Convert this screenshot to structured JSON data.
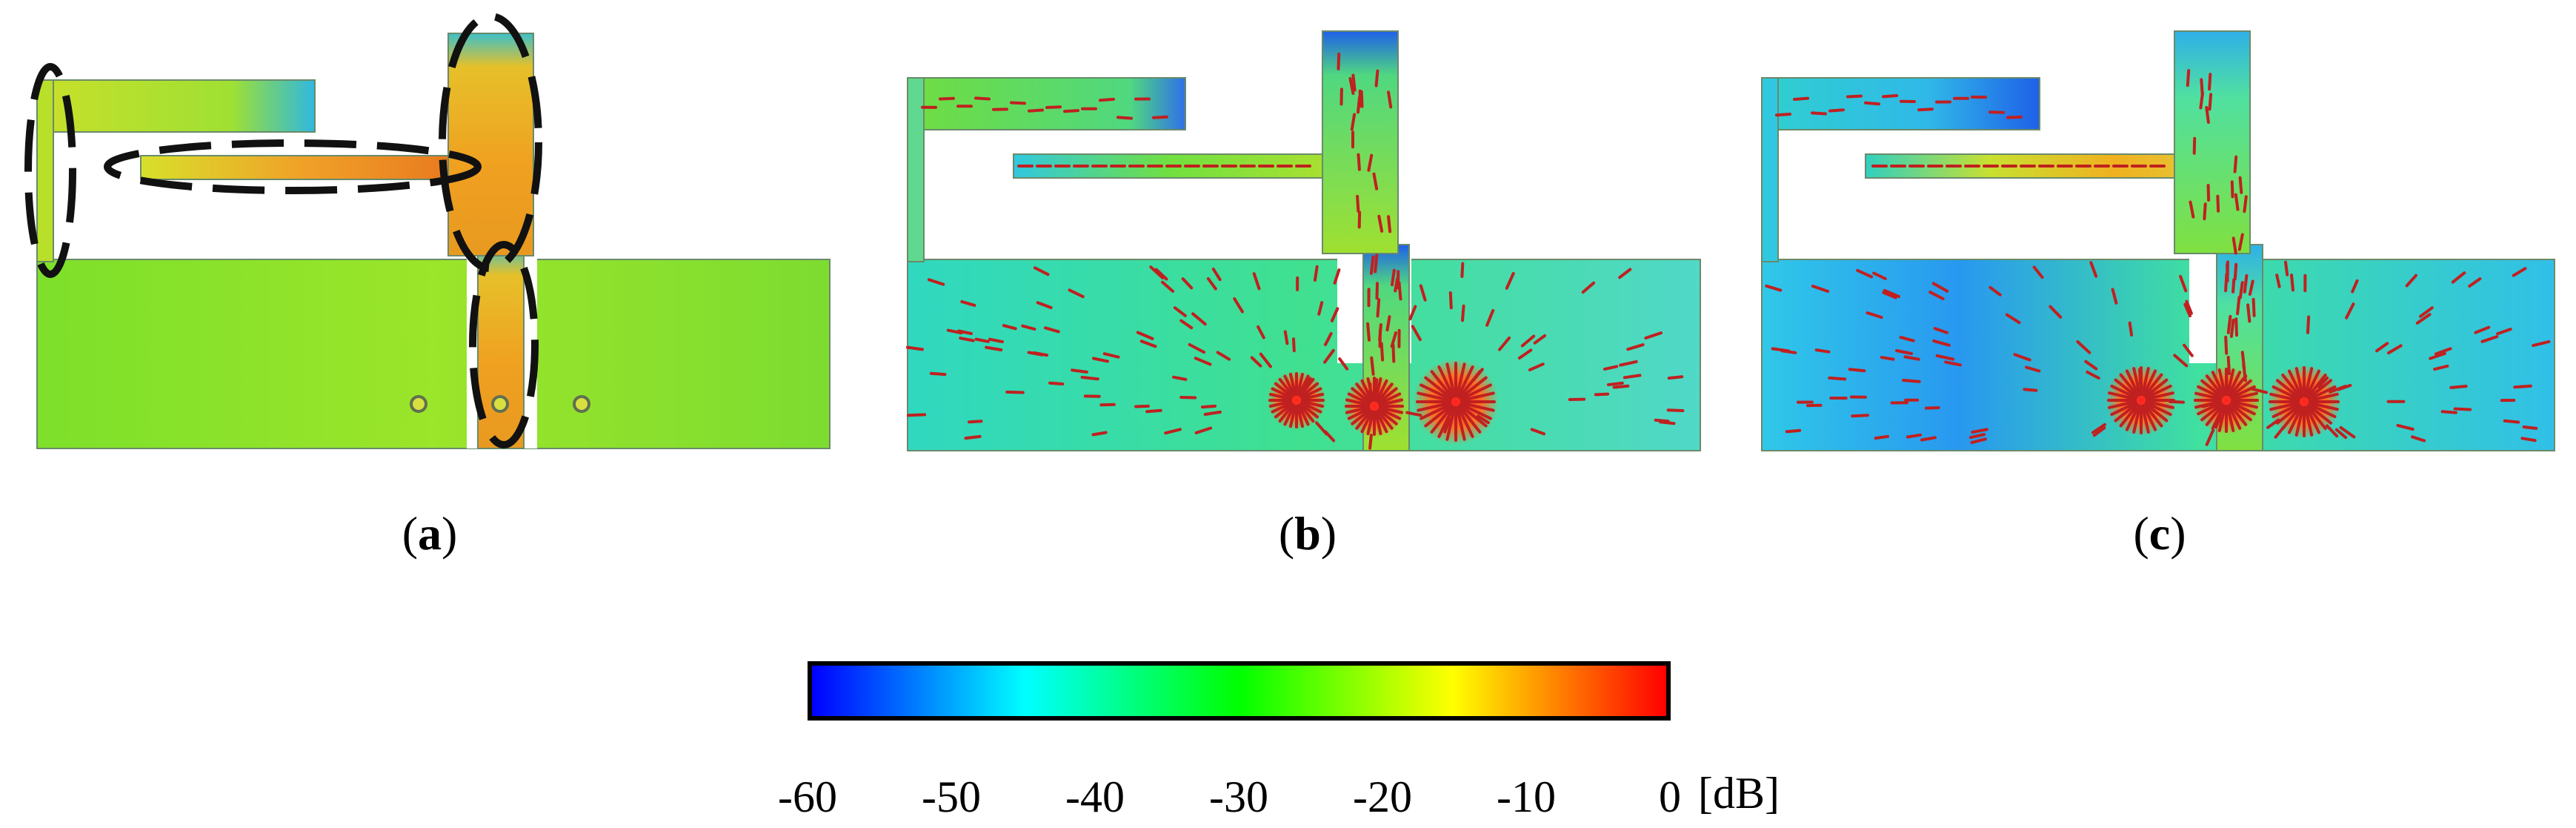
{
  "panels": [
    {
      "id": "a",
      "label_prefix": "(",
      "label_letter": "a",
      "label_suffix": ")"
    },
    {
      "id": "b",
      "label_prefix": "(",
      "label_letter": "b",
      "label_suffix": ")"
    },
    {
      "id": "c",
      "label_prefix": "(",
      "label_letter": "c",
      "label_suffix": ")"
    }
  ],
  "colorbar": {
    "ticks": [
      "-60",
      "-50",
      "-40",
      "-30",
      "-20",
      "-10",
      "0"
    ],
    "unit": "[dB]",
    "colors": [
      "#0000ff",
      "#00ffff",
      "#00ff00",
      "#ffff00",
      "#ff0000"
    ]
  }
}
